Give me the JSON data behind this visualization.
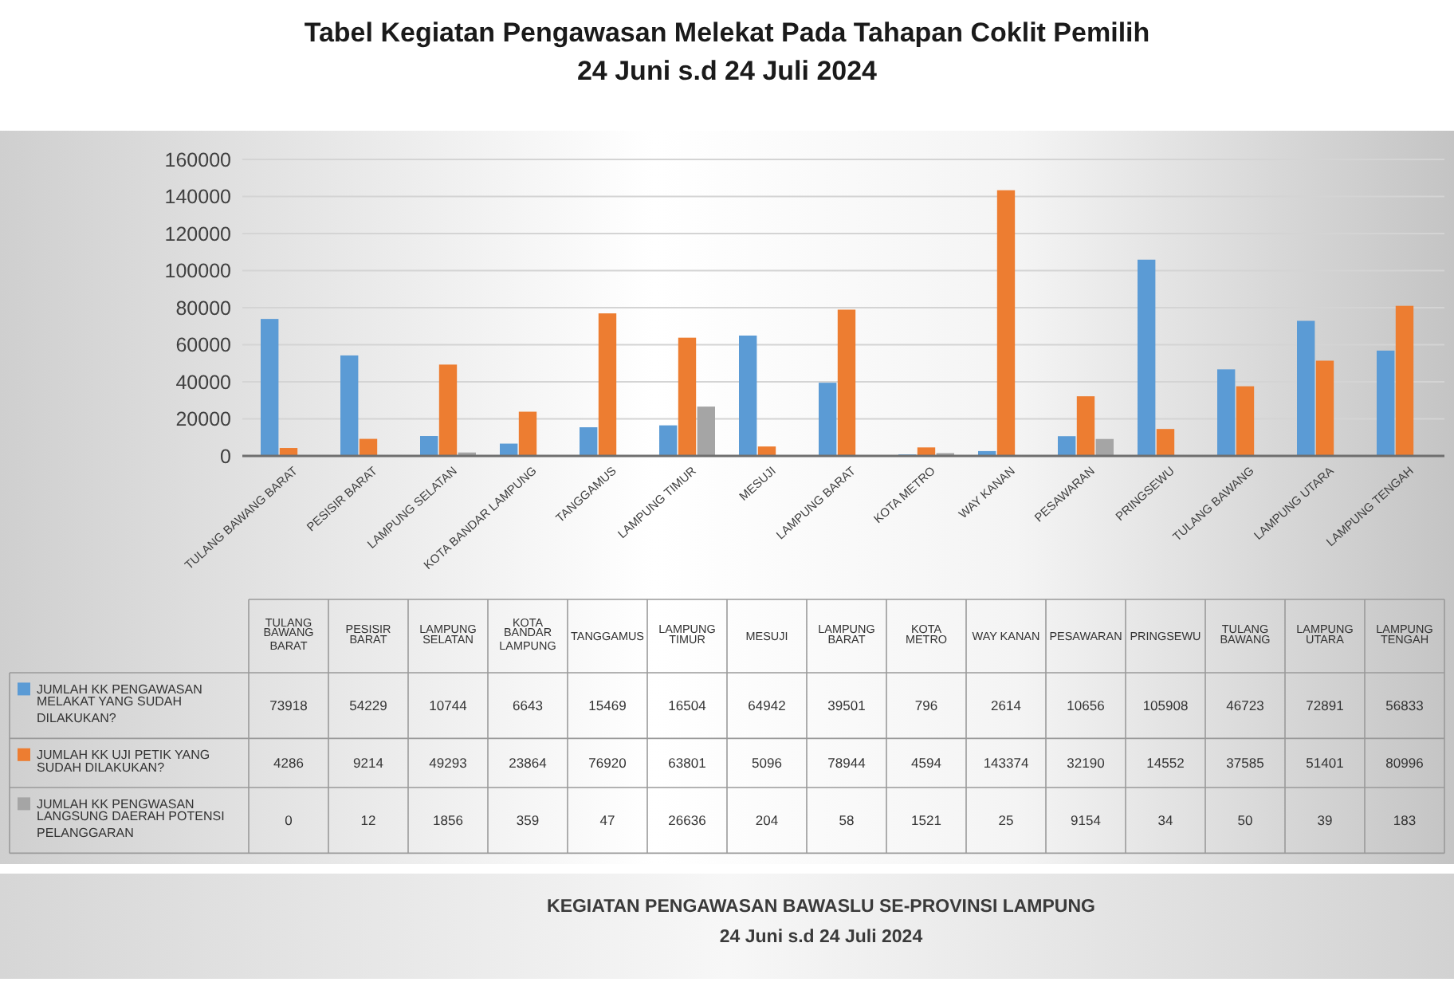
{
  "chart_data": {
    "type": "bar",
    "title": "Tabel Kegiatan Pengawasan Melekat Pada Tahapan Coklit Pemilih",
    "subtitle": "24 Juni s.d 24 Juli 2024",
    "categories": [
      "TULANG BAWANG BARAT",
      "PESISIR BARAT",
      "LAMPUNG SELATAN",
      "KOTA BANDAR LAMPUNG",
      "TANGGAMUS",
      "LAMPUNG TIMUR",
      "MESUJI",
      "LAMPUNG BARAT",
      "KOTA METRO",
      "WAY KANAN",
      "PESAWARAN",
      "PRINGSEWU",
      "TULANG BAWANG",
      "LAMPUNG UTARA",
      "LAMPUNG TENGAH"
    ],
    "series": [
      {
        "name": "JUMLAH KK PENGAWASAN MELAKAT YANG SUDAH DILAKUKAN?",
        "color": "#5b9bd5",
        "values": [
          73918,
          54229,
          10744,
          6643,
          15469,
          16504,
          64942,
          39501,
          796,
          2614,
          10656,
          105908,
          46723,
          72891,
          56833
        ]
      },
      {
        "name": "JUMLAH KK UJI PETIK YANG SUDAH DILAKUKAN?",
        "color": "#ed7d31",
        "values": [
          4286,
          9214,
          49293,
          23864,
          76920,
          63801,
          5096,
          78944,
          4594,
          143374,
          32190,
          14552,
          37585,
          51401,
          80996
        ]
      },
      {
        "name": "JUMLAH KK PENGWASAN LANGSUNG DAERAH POTENSI PELANGGARAN",
        "color": "#a5a5a5",
        "values": [
          0,
          12,
          1856,
          359,
          47,
          26636,
          204,
          58,
          1521,
          25,
          9154,
          34,
          50,
          39,
          183
        ]
      }
    ],
    "ylim": [
      0,
      160000
    ],
    "yticks": [
      0,
      20000,
      40000,
      60000,
      80000,
      100000,
      120000,
      140000,
      160000
    ],
    "grid": "y",
    "legend": "bottom",
    "data_labels": true,
    "annotations": [
      "KEGIATAN PENGAWASAN BAWASLU SE-PROVINSI LAMPUNG",
      "24 Juni s.d 24 Juli 2024"
    ]
  }
}
